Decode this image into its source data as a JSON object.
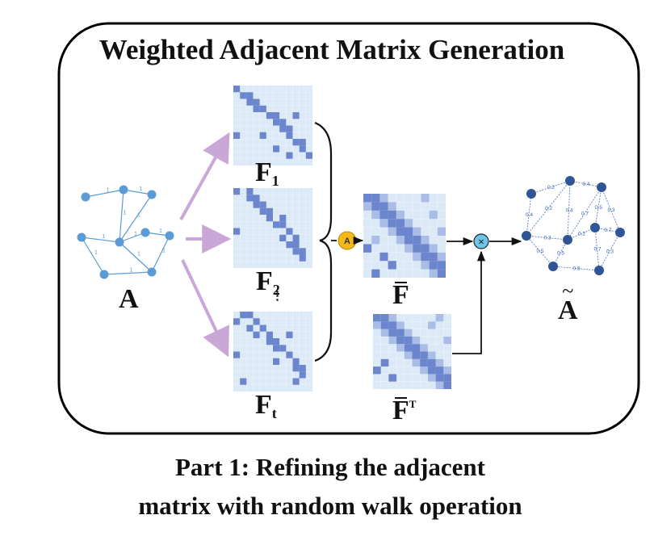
{
  "title": "Weighted Adjacent Matrix Generation",
  "caption": {
    "line1": "Part 1: Refining the adjacent",
    "line2": "matrix with random walk operation"
  },
  "input_graph": {
    "label": "A",
    "edge_weight": "1"
  },
  "feature_matrices": [
    {
      "symbol": "F",
      "subscript": "1"
    },
    {
      "symbol": "F",
      "subscript": "2"
    },
    {
      "symbol": "F",
      "subscript": "t"
    }
  ],
  "ellipsis": "⋮",
  "aggregate_operator": {
    "symbol": "A",
    "color": "#f5b819"
  },
  "multiply_operator": {
    "symbol": "×",
    "color": "#6ec6e6"
  },
  "aggregated_matrix": {
    "symbol": "F"
  },
  "transposed_matrix": {
    "symbol": "F",
    "superscript": "T"
  },
  "output_graph": {
    "label": "A",
    "edge_weights": [
      "0.2",
      "0.4",
      "0.3",
      "0.3",
      "0.5",
      "0.5",
      "0.4",
      "0.3",
      "0.4",
      "0.2",
      "0.5",
      "0.7",
      "0.5",
      "0.2",
      "0.7",
      "0.7"
    ]
  },
  "colors": {
    "matrix_background": "#dce9f7",
    "matrix_cell": "#6b86cc",
    "matrix_cell_light": "#a9bde6",
    "graph_node_input": "#5b9bd5",
    "graph_node_output": "#2f5597",
    "arrow_purple": "#c9a8d8",
    "frame": "#000000"
  }
}
